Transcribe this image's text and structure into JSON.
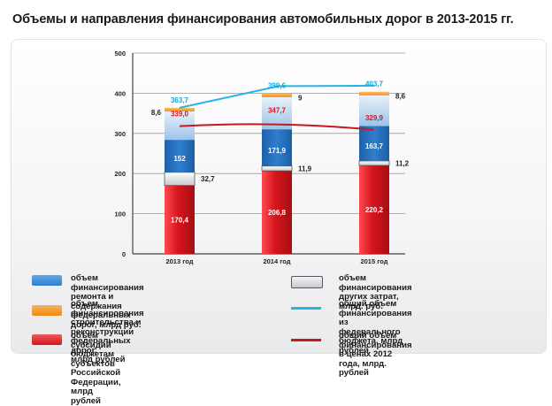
{
  "title": "Объемы и направления финансирования автомобильных дорог в 2013-2015 гг.",
  "colors": {
    "repair": "#2f7fcc",
    "construction": "#f08a16",
    "subsidy": "#d5141c",
    "other": "#c9cacd",
    "federal_total_line": "#25b4e6",
    "prices_2012_line": "#c41a1f",
    "total_label": "#1aa7dd",
    "prices_label": "#d11a22"
  },
  "legend": {
    "repair": "объем финансирования ремонта и\nсодержания федеральных дорог, млрд руб.",
    "construction": "объем финансирования строительства и\nреконструкции федеральных дорог,\nмлрд рублей",
    "subsidy": "объем субсидий бюджетам субъектов\nРоссийской Федерации, млрд рублей",
    "other": "объем финансирования\nдругих затрат, млрд. руб.",
    "federal_total": "общий объем финансирования\nиз федерального бюджета, млрд рублей",
    "prices_2012": "общий объем финансирования\nв ценах 2012 года, млрд. рублей"
  },
  "chart_data": {
    "type": "bar",
    "stacked": true,
    "categories": [
      "2013 год",
      "2014 год",
      "2015 год"
    ],
    "ylim": [
      0,
      500
    ],
    "yticks": [
      "0",
      "100",
      "200",
      "300",
      "400",
      "500"
    ],
    "grid": true,
    "legend_position": "bottom",
    "series": [
      {
        "key": "subsidy",
        "values": [
          170.4,
          206.8,
          220.2
        ],
        "labels": [
          "170,4",
          "206,8",
          "220,2"
        ]
      },
      {
        "key": "other",
        "values": [
          32.7,
          11.9,
          11.2
        ],
        "labels": [
          "32,7",
          "11,9",
          "11,2"
        ]
      },
      {
        "key": "repair",
        "values": [
          152,
          171.9,
          163.7
        ],
        "labels": [
          "152",
          "171,9",
          "163,7"
        ]
      },
      {
        "key": "construction",
        "values": [
          8.6,
          9,
          8.6
        ],
        "labels": [
          "8,6",
          "9",
          "8,6"
        ]
      }
    ],
    "lines": [
      {
        "key": "federal_total",
        "values": [
          363.7,
          399.6,
          403.7
        ],
        "labels": [
          "363,7",
          "399,6",
          "403,7"
        ]
      },
      {
        "key": "prices_2012",
        "values": [
          339.0,
          347.7,
          329.9
        ],
        "labels": [
          "339,0",
          "347,7",
          "329,9"
        ]
      }
    ]
  }
}
